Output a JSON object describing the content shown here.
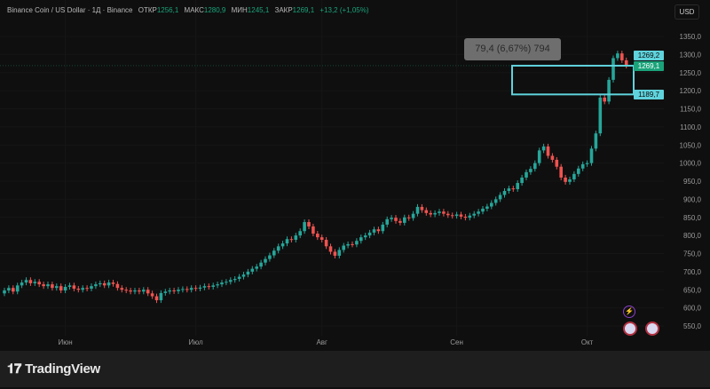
{
  "header": {
    "symbol": "Binance Coin / US Dollar · 1Д · Binance",
    "open_label": "ОТКР",
    "open": "1256,1",
    "high_label": "МАКС",
    "high": "1280,9",
    "low_label": "МИН",
    "low": "1245,1",
    "close_label": "ЗАКР",
    "close": "1269,1",
    "change": "+13,2 (+1,05%)"
  },
  "currency_button": "USD",
  "measure_tooltip": "79,4 (6,67%) 794",
  "price_tags": {
    "upper": "1269,2",
    "last": "1269,1",
    "lower": "1189,7"
  },
  "footer": {
    "brand": "TradingView",
    "brand_icon": "tradingview-logo-icon"
  },
  "colors": {
    "up": "#26a69a",
    "down": "#ef5350",
    "measure_box": "#5fd3dc",
    "last_price": "#1aa37a",
    "background": "#0f0f0f"
  },
  "events": [
    {
      "icon": "lightning-icon"
    },
    {
      "icon": "us-flag-icon"
    },
    {
      "icon": "us-flag-icon"
    }
  ],
  "chart_data": {
    "type": "candlestick",
    "title": "",
    "xlabel": "",
    "ylabel": "",
    "ylim": [
      530,
      1380
    ],
    "y_ticks": [
      "1350,0",
      "1300,0",
      "1250,0",
      "1200,0",
      "1150,0",
      "1100,0",
      "1050,0",
      "1000,0",
      "950,0",
      "900,0",
      "850,0",
      "800,0",
      "750,0",
      "700,0",
      "650,0",
      "600,0",
      "550,0"
    ],
    "y_tick_values": [
      1350,
      1300,
      1250,
      1200,
      1150,
      1100,
      1050,
      1000,
      950,
      900,
      850,
      800,
      750,
      700,
      650,
      600,
      550
    ],
    "x_ticks": [
      "Июн",
      "Июл",
      "Авг",
      "Сен",
      "Окт"
    ],
    "x_tick_candle_index": [
      14,
      44,
      73,
      104,
      134
    ],
    "grid": true,
    "closes": [
      648,
      655,
      645,
      662,
      670,
      677,
      668,
      672,
      665,
      660,
      665,
      655,
      660,
      648,
      658,
      662,
      653,
      650,
      655,
      653,
      660,
      665,
      668,
      662,
      670,
      666,
      655,
      650,
      648,
      645,
      648,
      645,
      650,
      640,
      632,
      621,
      641,
      645,
      648,
      646,
      650,
      652,
      650,
      655,
      653,
      656,
      660,
      658,
      662,
      665,
      670,
      672,
      677,
      680,
      686,
      692,
      700,
      708,
      714,
      725,
      735,
      745,
      758,
      770,
      778,
      790,
      788,
      800,
      812,
      837,
      825,
      805,
      795,
      788,
      770,
      755,
      744,
      760,
      772,
      776,
      775,
      785,
      795,
      800,
      808,
      817,
      812,
      830,
      845,
      849,
      840,
      835,
      850,
      848,
      860,
      879,
      870,
      862,
      858,
      862,
      866,
      860,
      856,
      854,
      858,
      852,
      849,
      855,
      860,
      866,
      874,
      880,
      890,
      900,
      912,
      923,
      930,
      928,
      945,
      960,
      975,
      984,
      1000,
      1035,
      1046,
      1020,
      1009,
      990,
      960,
      948,
      955,
      970,
      985,
      997,
      1000,
      1040,
      1082,
      1181,
      1170,
      1230,
      1290,
      1303,
      1284,
      1269
    ],
    "first_open": 640,
    "measure_range": [
      1189.7,
      1269.1
    ],
    "last_price": 1269.1
  }
}
